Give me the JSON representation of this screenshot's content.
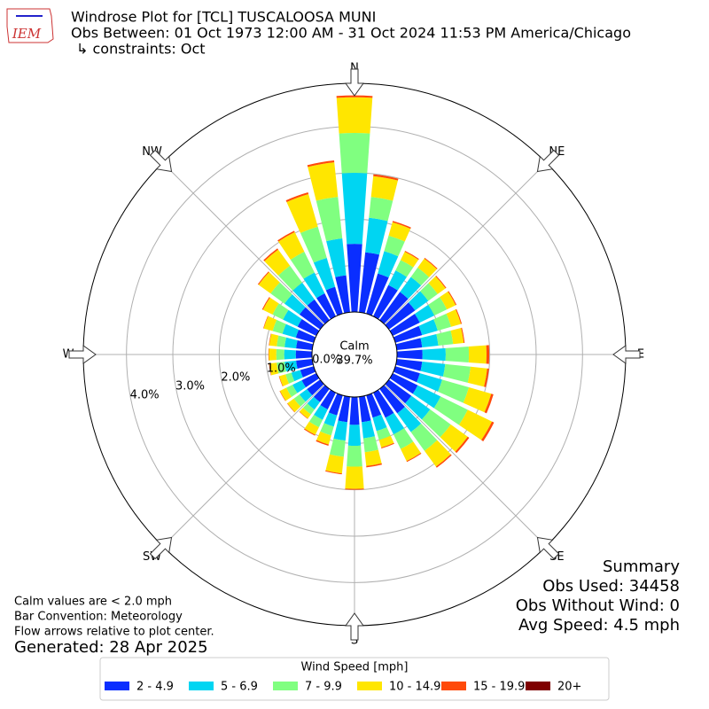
{
  "logo_text": "IEM",
  "title_lines": [
    "Windrose Plot for [TCL] TUSCALOOSA MUNI",
    "Obs Between: 01 Oct 1973 12:00 AM - 31 Oct 2024 11:53 PM America/Chicago",
    "↳ constraints: Oct"
  ],
  "chart_data": {
    "type": "windrose",
    "x": [
      0,
      10,
      20,
      30,
      40,
      50,
      60,
      70,
      80,
      90,
      100,
      110,
      120,
      130,
      140,
      150,
      160,
      170,
      180,
      190,
      200,
      210,
      220,
      230,
      240,
      250,
      260,
      270,
      280,
      290,
      300,
      310,
      320,
      330,
      340,
      350
    ],
    "ylim": [
      0,
      4.93
    ],
    "yticks": [
      {
        "value": 0,
        "label": "0.0%"
      },
      {
        "value": 1,
        "label": "1.0%"
      },
      {
        "value": 2,
        "label": "2.0%"
      },
      {
        "value": 3,
        "label": "3.0%"
      },
      {
        "value": 4,
        "label": "4.0%"
      }
    ],
    "direction_labels": [
      {
        "value": 0,
        "label": "N"
      },
      {
        "value": 45,
        "label": "NE"
      },
      {
        "value": 90,
        "label": "E"
      },
      {
        "value": 135,
        "label": "SE"
      },
      {
        "value": 180,
        "label": "S"
      },
      {
        "value": 225,
        "label": "SW"
      },
      {
        "value": 270,
        "label": "W"
      },
      {
        "value": 315,
        "label": "NW"
      }
    ],
    "calm": {
      "label": "Calm",
      "value": 39.7,
      "value_label": "39.7%"
    },
    "legend_title": "Wind Speed [mph]",
    "series": [
      {
        "name": "2 - 4.9",
        "color": "#0a2eff",
        "values": [
          1.47,
          1.3,
          0.9,
          0.75,
          0.75,
          0.7,
          0.65,
          0.6,
          0.55,
          0.55,
          0.55,
          0.55,
          0.6,
          0.6,
          0.65,
          0.6,
          0.5,
          0.55,
          0.6,
          0.55,
          0.45,
          0.4,
          0.35,
          0.35,
          0.35,
          0.3,
          0.35,
          0.35,
          0.35,
          0.4,
          0.45,
          0.55,
          0.55,
          0.55,
          0.6,
          0.8
        ]
      },
      {
        "name": "5 - 6.9",
        "color": "#00d5f2",
        "values": [
          1.53,
          0.75,
          0.5,
          0.35,
          0.4,
          0.35,
          0.35,
          0.35,
          0.35,
          0.5,
          0.5,
          0.5,
          0.55,
          0.5,
          0.5,
          0.4,
          0.3,
          0.35,
          0.45,
          0.4,
          0.25,
          0.25,
          0.2,
          0.2,
          0.22,
          0.2,
          0.25,
          0.25,
          0.25,
          0.3,
          0.35,
          0.4,
          0.45,
          0.5,
          0.65,
          0.8
        ]
      },
      {
        "name": "7 - 9.9",
        "color": "#80ff80",
        "values": [
          0.86,
          0.45,
          0.35,
          0.25,
          0.25,
          0.25,
          0.3,
          0.3,
          0.32,
          0.5,
          0.55,
          0.6,
          0.65,
          0.55,
          0.5,
          0.35,
          0.2,
          0.3,
          0.45,
          0.35,
          0.2,
          0.18,
          0.13,
          0.15,
          0.15,
          0.13,
          0.17,
          0.17,
          0.17,
          0.22,
          0.25,
          0.37,
          0.45,
          0.5,
          0.7,
          0.9
        ]
      },
      {
        "name": "10 - 14.9",
        "color": "#ffe600",
        "values": [
          0.77,
          0.45,
          0.3,
          0.2,
          0.24,
          0.21,
          0.21,
          0.22,
          0.23,
          0.38,
          0.36,
          0.5,
          0.58,
          0.45,
          0.42,
          0.29,
          0.17,
          0.3,
          0.48,
          0.36,
          0.2,
          0.18,
          0.11,
          0.17,
          0.15,
          0.14,
          0.16,
          0.16,
          0.16,
          0.2,
          0.23,
          0.32,
          0.43,
          0.47,
          0.73,
          0.75
        ]
      },
      {
        "name": "15 - 19.9",
        "color": "#ff4a0a",
        "values": [
          0.04,
          0.04,
          0.03,
          0.02,
          0.02,
          0.02,
          0.02,
          0.02,
          0.02,
          0.06,
          0.04,
          0.05,
          0.05,
          0.04,
          0.03,
          0.02,
          0.02,
          0.03,
          0.02,
          0.02,
          0.03,
          0.02,
          0.01,
          0.01,
          0.01,
          0.01,
          0.01,
          0.01,
          0.01,
          0.01,
          0.02,
          0.02,
          0.03,
          0.03,
          0.04,
          0.04
        ]
      },
      {
        "name": "20+",
        "color": "#7f0000",
        "values": [
          0,
          0,
          0,
          0,
          0,
          0,
          0,
          0,
          0,
          0,
          0,
          0,
          0,
          0,
          0,
          0,
          0,
          0,
          0,
          0,
          0,
          0,
          0,
          0,
          0,
          0,
          0,
          0,
          0,
          0,
          0,
          0,
          0,
          0,
          0,
          0
        ]
      }
    ]
  },
  "notes": [
    "Calm values are < 2.0 mph",
    "Bar Convention: Meteorology",
    "Flow arrows relative to plot center."
  ],
  "generated": "Generated: 28 Apr 2025",
  "summary": [
    "Summary",
    "Obs Used: 34458",
    "Obs Without Wind: 0",
    "Avg Speed: 4.5 mph"
  ]
}
